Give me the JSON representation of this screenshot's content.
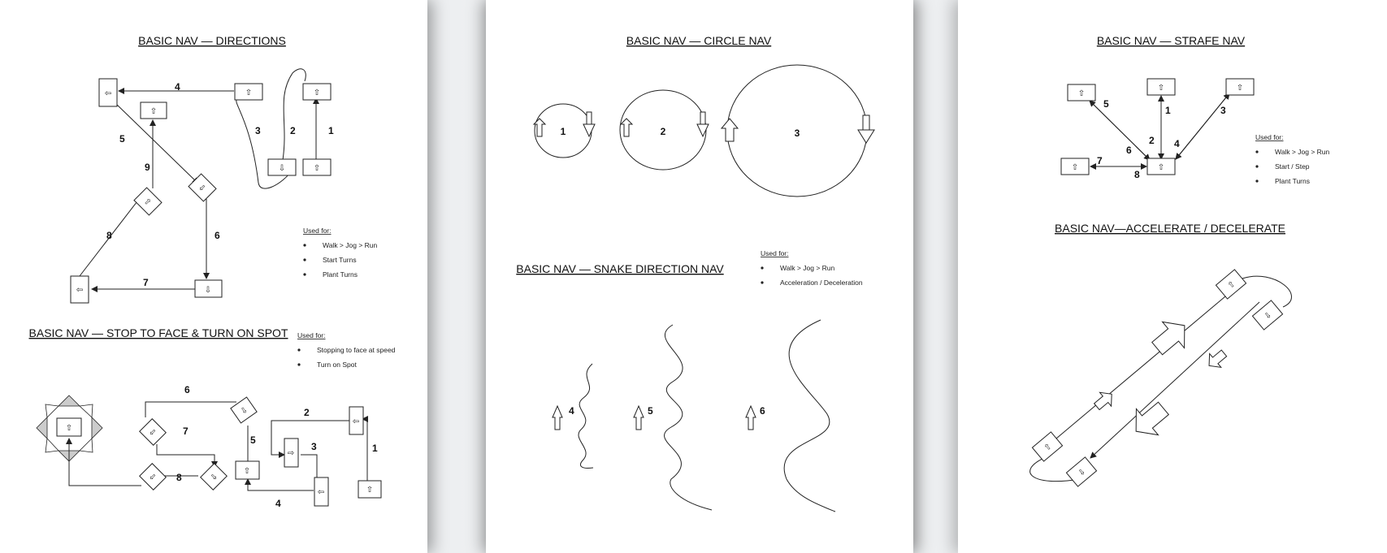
{
  "page1": {
    "title_directions": "BASIC NAV — DIRECTIONS",
    "title_stop": "BASIC NAV — STOP TO FACE & TURN ON SPOT",
    "directions_steps": [
      "1",
      "2",
      "3",
      "4",
      "5",
      "6",
      "7",
      "8",
      "9"
    ],
    "used_for_label": "Used for:",
    "directions_uses": [
      "Walk > Jog > Run",
      "Start Turns",
      "Plant Turns"
    ],
    "stop_uses": [
      "Stopping to face at speed",
      "Turn on Spot"
    ],
    "stop_steps": [
      "1",
      "2",
      "3",
      "4",
      "5",
      "6",
      "7",
      "8"
    ]
  },
  "page2": {
    "title_circle": "BASIC NAV — CIRCLE NAV",
    "circle_labels": [
      "1",
      "2",
      "3"
    ],
    "title_snake": "BASIC NAV — SNAKE DIRECTION NAV",
    "used_for_label": "Used for:",
    "snake_uses": [
      "Walk > Jog > Run",
      "Acceleration / Deceleration"
    ],
    "snake_labels": [
      "4",
      "5",
      "6"
    ]
  },
  "page3": {
    "title_strafe": "BASIC NAV — STRAFE NAV",
    "strafe_steps": [
      "1",
      "2",
      "3",
      "4",
      "5",
      "6",
      "7",
      "8"
    ],
    "used_for_label": "Used for:",
    "strafe_uses": [
      "Walk > Jog > Run",
      "Start  / Step",
      "Plant Turns"
    ],
    "title_accel": "BASIC NAV—ACCELERATE / DECELERATE"
  },
  "icons": {
    "up": "⇧",
    "down": "⇩",
    "left": "⇦",
    "right": "⇨"
  }
}
